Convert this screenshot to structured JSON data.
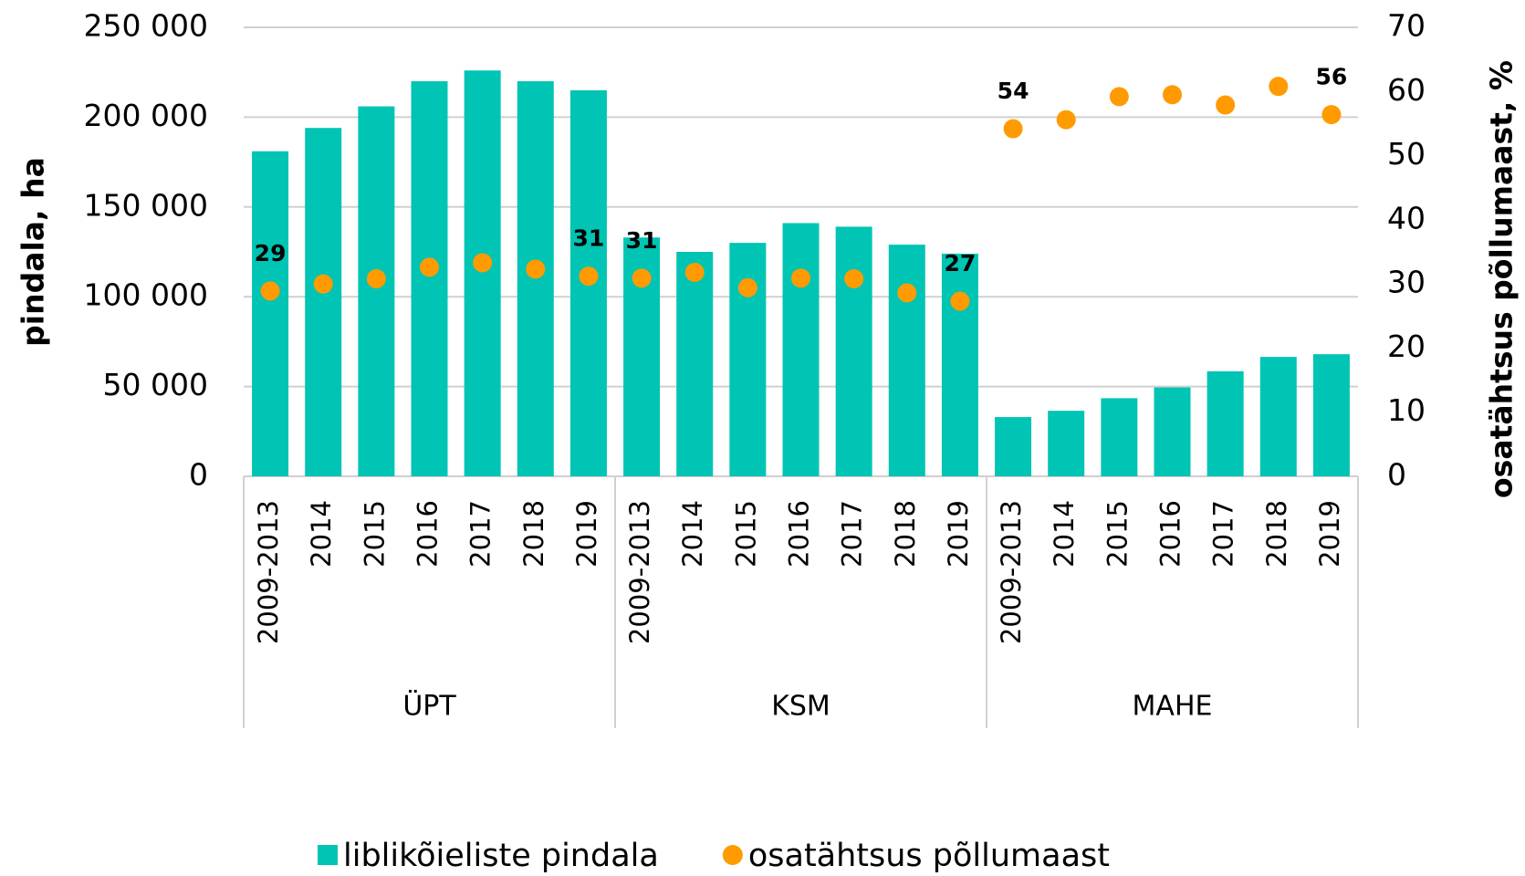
{
  "chart_data": {
    "type": "bar_dot",
    "categories": [
      "2009-2013",
      "2014",
      "2015",
      "2016",
      "2017",
      "2018",
      "2019",
      "2009-2013",
      "2014",
      "2015",
      "2016",
      "2017",
      "2018",
      "2019",
      "2009-2013",
      "2014",
      "2015",
      "2016",
      "2017",
      "2018",
      "2019"
    ],
    "groups": [
      "ÜPT",
      "KSM",
      "MAHE"
    ],
    "group_size": 7,
    "y_label": "pindala, ha",
    "y2_label": "osatähtsus põllumaast, %",
    "ylim": [
      0,
      250000
    ],
    "yticks": [
      {
        "value": 0,
        "label": "0"
      },
      {
        "value": 50000,
        "label": "50 000"
      },
      {
        "value": 100000,
        "label": "100 000"
      },
      {
        "value": 150000,
        "label": "150 000"
      },
      {
        "value": 200000,
        "label": "200 000"
      },
      {
        "value": 250000,
        "label": "250 000"
      }
    ],
    "y2lim": [
      0,
      70
    ],
    "y2ticks": [
      0,
      10,
      20,
      30,
      40,
      50,
      60,
      70
    ],
    "grid": true,
    "legend": "bottom",
    "series": [
      {
        "name": "liblikõieliste pindala",
        "color": "#00c4b4",
        "kind": "bar",
        "values": [
          181000,
          194000,
          206000,
          220000,
          226000,
          220000,
          215000,
          133000,
          125000,
          130000,
          141000,
          139000,
          129000,
          124000,
          33000,
          36500,
          43500,
          49500,
          58500,
          66500,
          68000
        ]
      },
      {
        "name": "osatähtsus põllumaast",
        "color": "#ff9b00",
        "kind": "dot",
        "axis": "y2",
        "values": [
          28.9,
          30,
          30.8,
          32.6,
          33.3,
          32.3,
          31.2,
          30.9,
          31.8,
          29.4,
          30.9,
          30.8,
          28.6,
          27.3,
          54.2,
          55.6,
          59.2,
          59.5,
          57.9,
          60.8,
          56.4
        ],
        "value_labels": [
          "29",
          null,
          null,
          null,
          null,
          null,
          "31",
          "31",
          null,
          null,
          null,
          null,
          null,
          "27",
          "54",
          null,
          null,
          null,
          null,
          null,
          "56"
        ]
      }
    ]
  }
}
